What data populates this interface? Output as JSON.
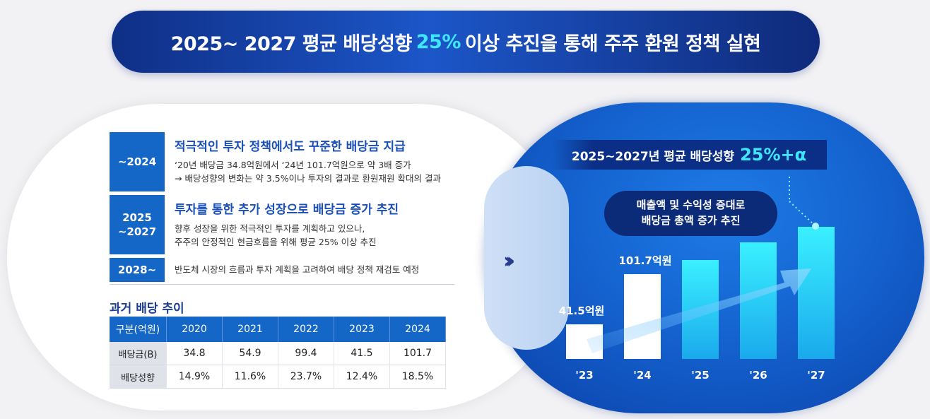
{
  "banner": {
    "prefix": "2025~ 2027 평균 배당성향",
    "highlight": "25%",
    "suffix": "이상 추진을 통해 주주 환원 정책 실현"
  },
  "rows": [
    {
      "label": "~2024",
      "title": "적극적인 투자 정책에서도 꾸준한 배당금 지급",
      "lines": [
        "‘20년 배당금 34.8억원에서 ‘24년 101.7억원으로 약 3배 증가",
        "→ 배당성향의 변화는 약 3.5%이나 투자의 결과로 환원재원 확대의 결과"
      ]
    },
    {
      "label_line1": "2025",
      "label_line2": "~2027",
      "title": "투자를 통한 추가 성장으로 배당금 증가 추진",
      "lines": [
        "향후 성장을 위한 적극적인 투자를 계획하고 있으나,",
        "주주의 안정적인 현금흐름을 위해 평균 25% 이상 추진"
      ]
    },
    {
      "label": "2028~",
      "lines": [
        "반도체 시장의 흐름과 투자 계획을 고려하여 배당 정책 재검토 예정"
      ]
    }
  ],
  "history": {
    "title": "과거 배당 추이",
    "header": [
      "구분(억원)",
      "2020",
      "2021",
      "2022",
      "2023",
      "2024"
    ],
    "rows": [
      [
        "배당금(B)",
        "34.8",
        "54.9",
        "99.4",
        "41.5",
        "101.7"
      ],
      [
        "배당성향",
        "14.9%",
        "11.6%",
        "23.7%",
        "12.4%",
        "18.5%"
      ]
    ]
  },
  "arrow_icon": "double-chevron-right-icon",
  "chart_panel": {
    "title": "2025~2027년 평균 배당성향",
    "title_value": "25%+α",
    "pill_line1": "매출액 및 수익성 증대로",
    "pill_line2": "배당금 총액 증가 추진"
  },
  "chart_data": {
    "type": "bar",
    "categories": [
      "'23",
      "'24",
      "'25",
      "'26",
      "'27"
    ],
    "values": [
      41.5,
      101.7,
      null,
      null,
      null
    ],
    "data_labels": [
      "41.5억원",
      "101.7억원",
      "",
      "",
      ""
    ],
    "title": "2025~2027년 평균 배당성향 25%+α",
    "colors": {
      "actual": "#ffffff",
      "projected": "#28d6f5"
    }
  },
  "colors": {
    "accent": "#1466c7",
    "highlight": "#3ee6ff",
    "navy": "#0b2f86"
  }
}
